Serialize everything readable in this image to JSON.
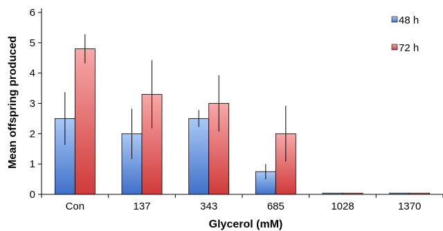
{
  "chart_data": {
    "type": "bar",
    "categories": [
      "Con",
      "137",
      "343",
      "685",
      "1028",
      "1370"
    ],
    "series": [
      {
        "name": "48 h",
        "values": [
          2.5,
          2.0,
          2.5,
          0.75,
          0.04,
          0.04
        ],
        "errors": [
          0.87,
          0.83,
          0.28,
          0.25,
          0,
          0
        ],
        "color": "#4f81d8"
      },
      {
        "name": "72 h",
        "values": [
          4.8,
          3.3,
          3.0,
          2.0,
          0.04,
          0.04
        ],
        "errors": [
          0.48,
          1.12,
          0.93,
          0.92,
          0,
          0
        ],
        "color": "#e04848"
      }
    ],
    "xlabel": "Glycerol (mM)",
    "ylabel": "Mean offspring produced",
    "ylim": [
      0,
      6
    ],
    "yticks": [
      "0",
      "1",
      "2",
      "3",
      "4",
      "5",
      "6"
    ],
    "grid": false,
    "legend_position": "top-right"
  }
}
